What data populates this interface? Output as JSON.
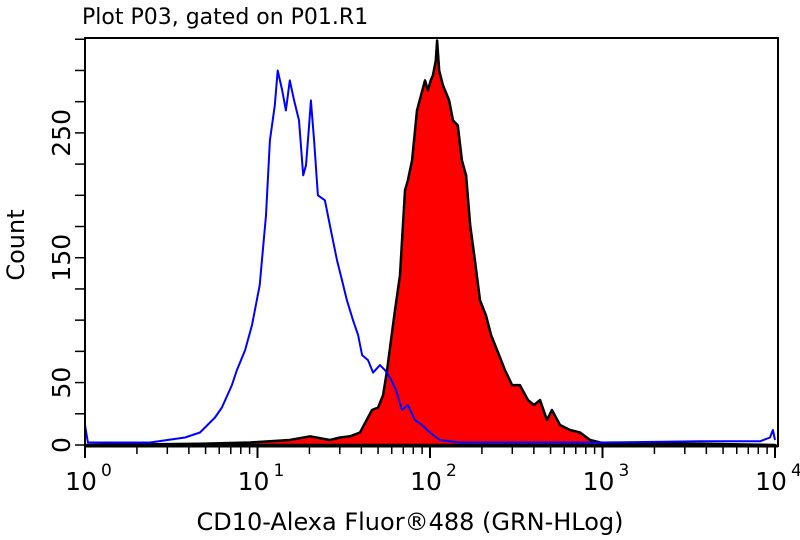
{
  "chart_data": {
    "type": "area",
    "title": "Plot P03, gated on P01.R1",
    "xlabel": "CD10-Alexa Fluor®488 (GRN-HLog)",
    "ylabel": "Count",
    "x_scale": "log",
    "xlim": [
      1,
      10000
    ],
    "ylim": [
      0,
      326
    ],
    "grid": false,
    "x_ticks": [
      {
        "value": 1,
        "base": "10",
        "exp": "0"
      },
      {
        "value": 10,
        "base": "10",
        "exp": "1"
      },
      {
        "value": 100,
        "base": "10",
        "exp": "2"
      },
      {
        "value": 1000,
        "base": "10",
        "exp": "3"
      },
      {
        "value": 10000,
        "base": "10",
        "exp": "4"
      }
    ],
    "y_ticks": [
      {
        "value": 0,
        "label": "0"
      },
      {
        "value": 50,
        "label": "50"
      },
      {
        "value": 150,
        "label": "150"
      },
      {
        "value": 250,
        "label": "250"
      }
    ],
    "y_minor_step": 25,
    "series": [
      {
        "style": "line",
        "color": "#0000ff",
        "points": [
          [
            1.0,
            16
          ],
          [
            1.04,
            2
          ],
          [
            2.38,
            2
          ],
          [
            3.8,
            6
          ],
          [
            4.64,
            10
          ],
          [
            5.67,
            22
          ],
          [
            6.22,
            30
          ],
          [
            7.11,
            48
          ],
          [
            7.6,
            60
          ],
          [
            8.47,
            76
          ],
          [
            9.29,
            96
          ],
          [
            10.3,
            128
          ],
          [
            11.2,
            184
          ],
          [
            11.8,
            244
          ],
          [
            12.6,
            272
          ],
          [
            13.1,
            300
          ],
          [
            13.9,
            284
          ],
          [
            14.6,
            268
          ],
          [
            15.4,
            292
          ],
          [
            16.3,
            276
          ],
          [
            17.4,
            260
          ],
          [
            18.4,
            216
          ],
          [
            19.1,
            224
          ],
          [
            19.9,
            256
          ],
          [
            20.4,
            276
          ],
          [
            21.3,
            244
          ],
          [
            22.4,
            200
          ],
          [
            24.6,
            196
          ],
          [
            27.0,
            168
          ],
          [
            28.9,
            148
          ],
          [
            30.9,
            132
          ],
          [
            33.0,
            116
          ],
          [
            35.8,
            100
          ],
          [
            38.3,
            88
          ],
          [
            40.4,
            72
          ],
          [
            43.7,
            68
          ],
          [
            46.8,
            58
          ],
          [
            51.3,
            64
          ],
          [
            54.8,
            60
          ],
          [
            58.6,
            54
          ],
          [
            63.5,
            44
          ],
          [
            68.8,
            28
          ],
          [
            74.5,
            32
          ],
          [
            81.8,
            20
          ],
          [
            89.9,
            16
          ],
          [
            100,
            10
          ],
          [
            114,
            4
          ],
          [
            149,
            2
          ],
          [
            968,
            2
          ],
          [
            3670,
            3
          ],
          [
            8190,
            3
          ],
          [
            9350,
            6
          ],
          [
            9730,
            12
          ],
          [
            10000,
            4
          ]
        ]
      },
      {
        "style": "filled",
        "color": "#ff0000",
        "stroke": "#000000",
        "points": [
          [
            1,
            0
          ],
          [
            4.64,
            1
          ],
          [
            9.05,
            2
          ],
          [
            15.4,
            4
          ],
          [
            20.2,
            7
          ],
          [
            26.3,
            4
          ],
          [
            30.1,
            6
          ],
          [
            34.4,
            7
          ],
          [
            39.3,
            10
          ],
          [
            43.7,
            22
          ],
          [
            46.1,
            28
          ],
          [
            50.0,
            30
          ],
          [
            53.5,
            40
          ],
          [
            56.4,
            60
          ],
          [
            59.4,
            84
          ],
          [
            62.7,
            108
          ],
          [
            67.0,
            136
          ],
          [
            71.6,
            204
          ],
          [
            74.5,
            212
          ],
          [
            78.7,
            228
          ],
          [
            84.1,
            268
          ],
          [
            88.7,
            280
          ],
          [
            93.5,
            292
          ],
          [
            97.3,
            284
          ],
          [
            101,
            292
          ],
          [
            104,
            296
          ],
          [
            108,
            308
          ],
          [
            110,
            324
          ],
          [
            113,
            300
          ],
          [
            119,
            288
          ],
          [
            129,
            276
          ],
          [
            136,
            260
          ],
          [
            145,
            256
          ],
          [
            153,
            228
          ],
          [
            162,
            216
          ],
          [
            171,
            176
          ],
          [
            182,
            148
          ],
          [
            195,
            116
          ],
          [
            211,
            104
          ],
          [
            226,
            88
          ],
          [
            245,
            76
          ],
          [
            272,
            60
          ],
          [
            299,
            48
          ],
          [
            332,
            48
          ],
          [
            370,
            36
          ],
          [
            401,
            32
          ],
          [
            434,
            36
          ],
          [
            477,
            20
          ],
          [
            509,
            28
          ],
          [
            567,
            16
          ],
          [
            648,
            12
          ],
          [
            741,
            10
          ],
          [
            847,
            4
          ],
          [
            968,
            2
          ],
          [
            1260,
            1
          ],
          [
            3670,
            1
          ],
          [
            10000,
            0
          ]
        ]
      }
    ]
  }
}
